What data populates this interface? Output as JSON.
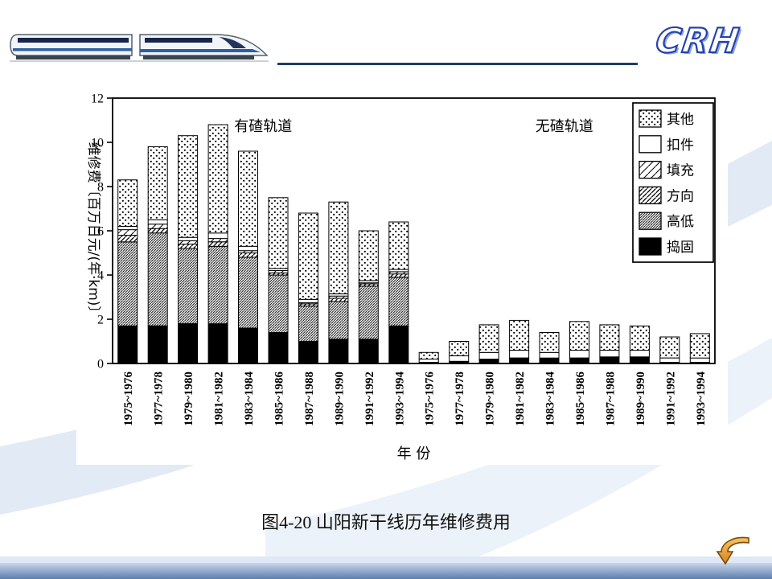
{
  "slide": {
    "logo_text": "CRH",
    "caption": "图4-20  山阳新干线历年维修费用"
  },
  "chart_data": {
    "type": "bar",
    "stacked": true,
    "title": "",
    "xlabel": "年  份",
    "ylabel": "维修费〔百万日元/(年·km)〕",
    "ylim": [
      0,
      12
    ],
    "yticks": [
      0,
      2,
      4,
      6,
      8,
      10,
      12
    ],
    "grid": false,
    "legend_position": "upper right",
    "group_labels": [
      "有碴轨道",
      "无碴轨道"
    ],
    "categories": [
      "1975~1976",
      "1977~1978",
      "1979~1980",
      "1981~1982",
      "1983~1984",
      "1985~1986",
      "1987~1988",
      "1989~1990",
      "1991~1992",
      "1993~1994",
      "1975~1976",
      "1977~1978",
      "1979~1980",
      "1981~1982",
      "1983~1984",
      "1985~1986",
      "1987~1988",
      "1989~1990",
      "1991~1992",
      "1993~1994"
    ],
    "legend_order": [
      "其他",
      "扣件",
      "填充",
      "方向",
      "高低",
      "捣固"
    ],
    "series": [
      {
        "name": "捣固",
        "fill": "black",
        "values": [
          1.7,
          1.7,
          1.8,
          1.8,
          1.6,
          1.4,
          1.0,
          1.1,
          1.1,
          1.7,
          0.05,
          0.1,
          0.2,
          0.25,
          0.25,
          0.25,
          0.3,
          0.3,
          0.05,
          0.05
        ]
      },
      {
        "name": "高低",
        "fill": "hatch-dense",
        "values": [
          3.8,
          4.2,
          3.4,
          3.5,
          3.2,
          2.6,
          1.6,
          1.7,
          2.4,
          2.2,
          0,
          0,
          0,
          0,
          0,
          0,
          0,
          0,
          0,
          0
        ]
      },
      {
        "name": "方向",
        "fill": "hatch-medium",
        "values": [
          0.3,
          0.2,
          0.2,
          0.2,
          0.2,
          0.1,
          0.1,
          0.15,
          0.1,
          0.15,
          0,
          0,
          0,
          0,
          0,
          0,
          0,
          0,
          0,
          0
        ]
      },
      {
        "name": "填充",
        "fill": "hatch-light",
        "values": [
          0.25,
          0.2,
          0.15,
          0.15,
          0.1,
          0.1,
          0.05,
          0.1,
          0.05,
          0.1,
          0,
          0,
          0,
          0,
          0,
          0,
          0,
          0,
          0,
          0
        ]
      },
      {
        "name": "扣件",
        "fill": "white",
        "values": [
          0.15,
          0.2,
          0.15,
          0.25,
          0.2,
          0.1,
          0.15,
          0.1,
          0.1,
          0.1,
          0.15,
          0.25,
          0.3,
          0.35,
          0.25,
          0.35,
          0.3,
          0.3,
          0.2,
          0.2
        ]
      },
      {
        "name": "其他",
        "fill": "dots",
        "values": [
          2.1,
          3.3,
          4.6,
          4.9,
          4.3,
          3.2,
          3.9,
          4.15,
          2.25,
          2.15,
          0.3,
          0.65,
          1.25,
          1.35,
          0.9,
          1.3,
          1.15,
          1.1,
          0.95,
          1.1
        ]
      }
    ]
  }
}
